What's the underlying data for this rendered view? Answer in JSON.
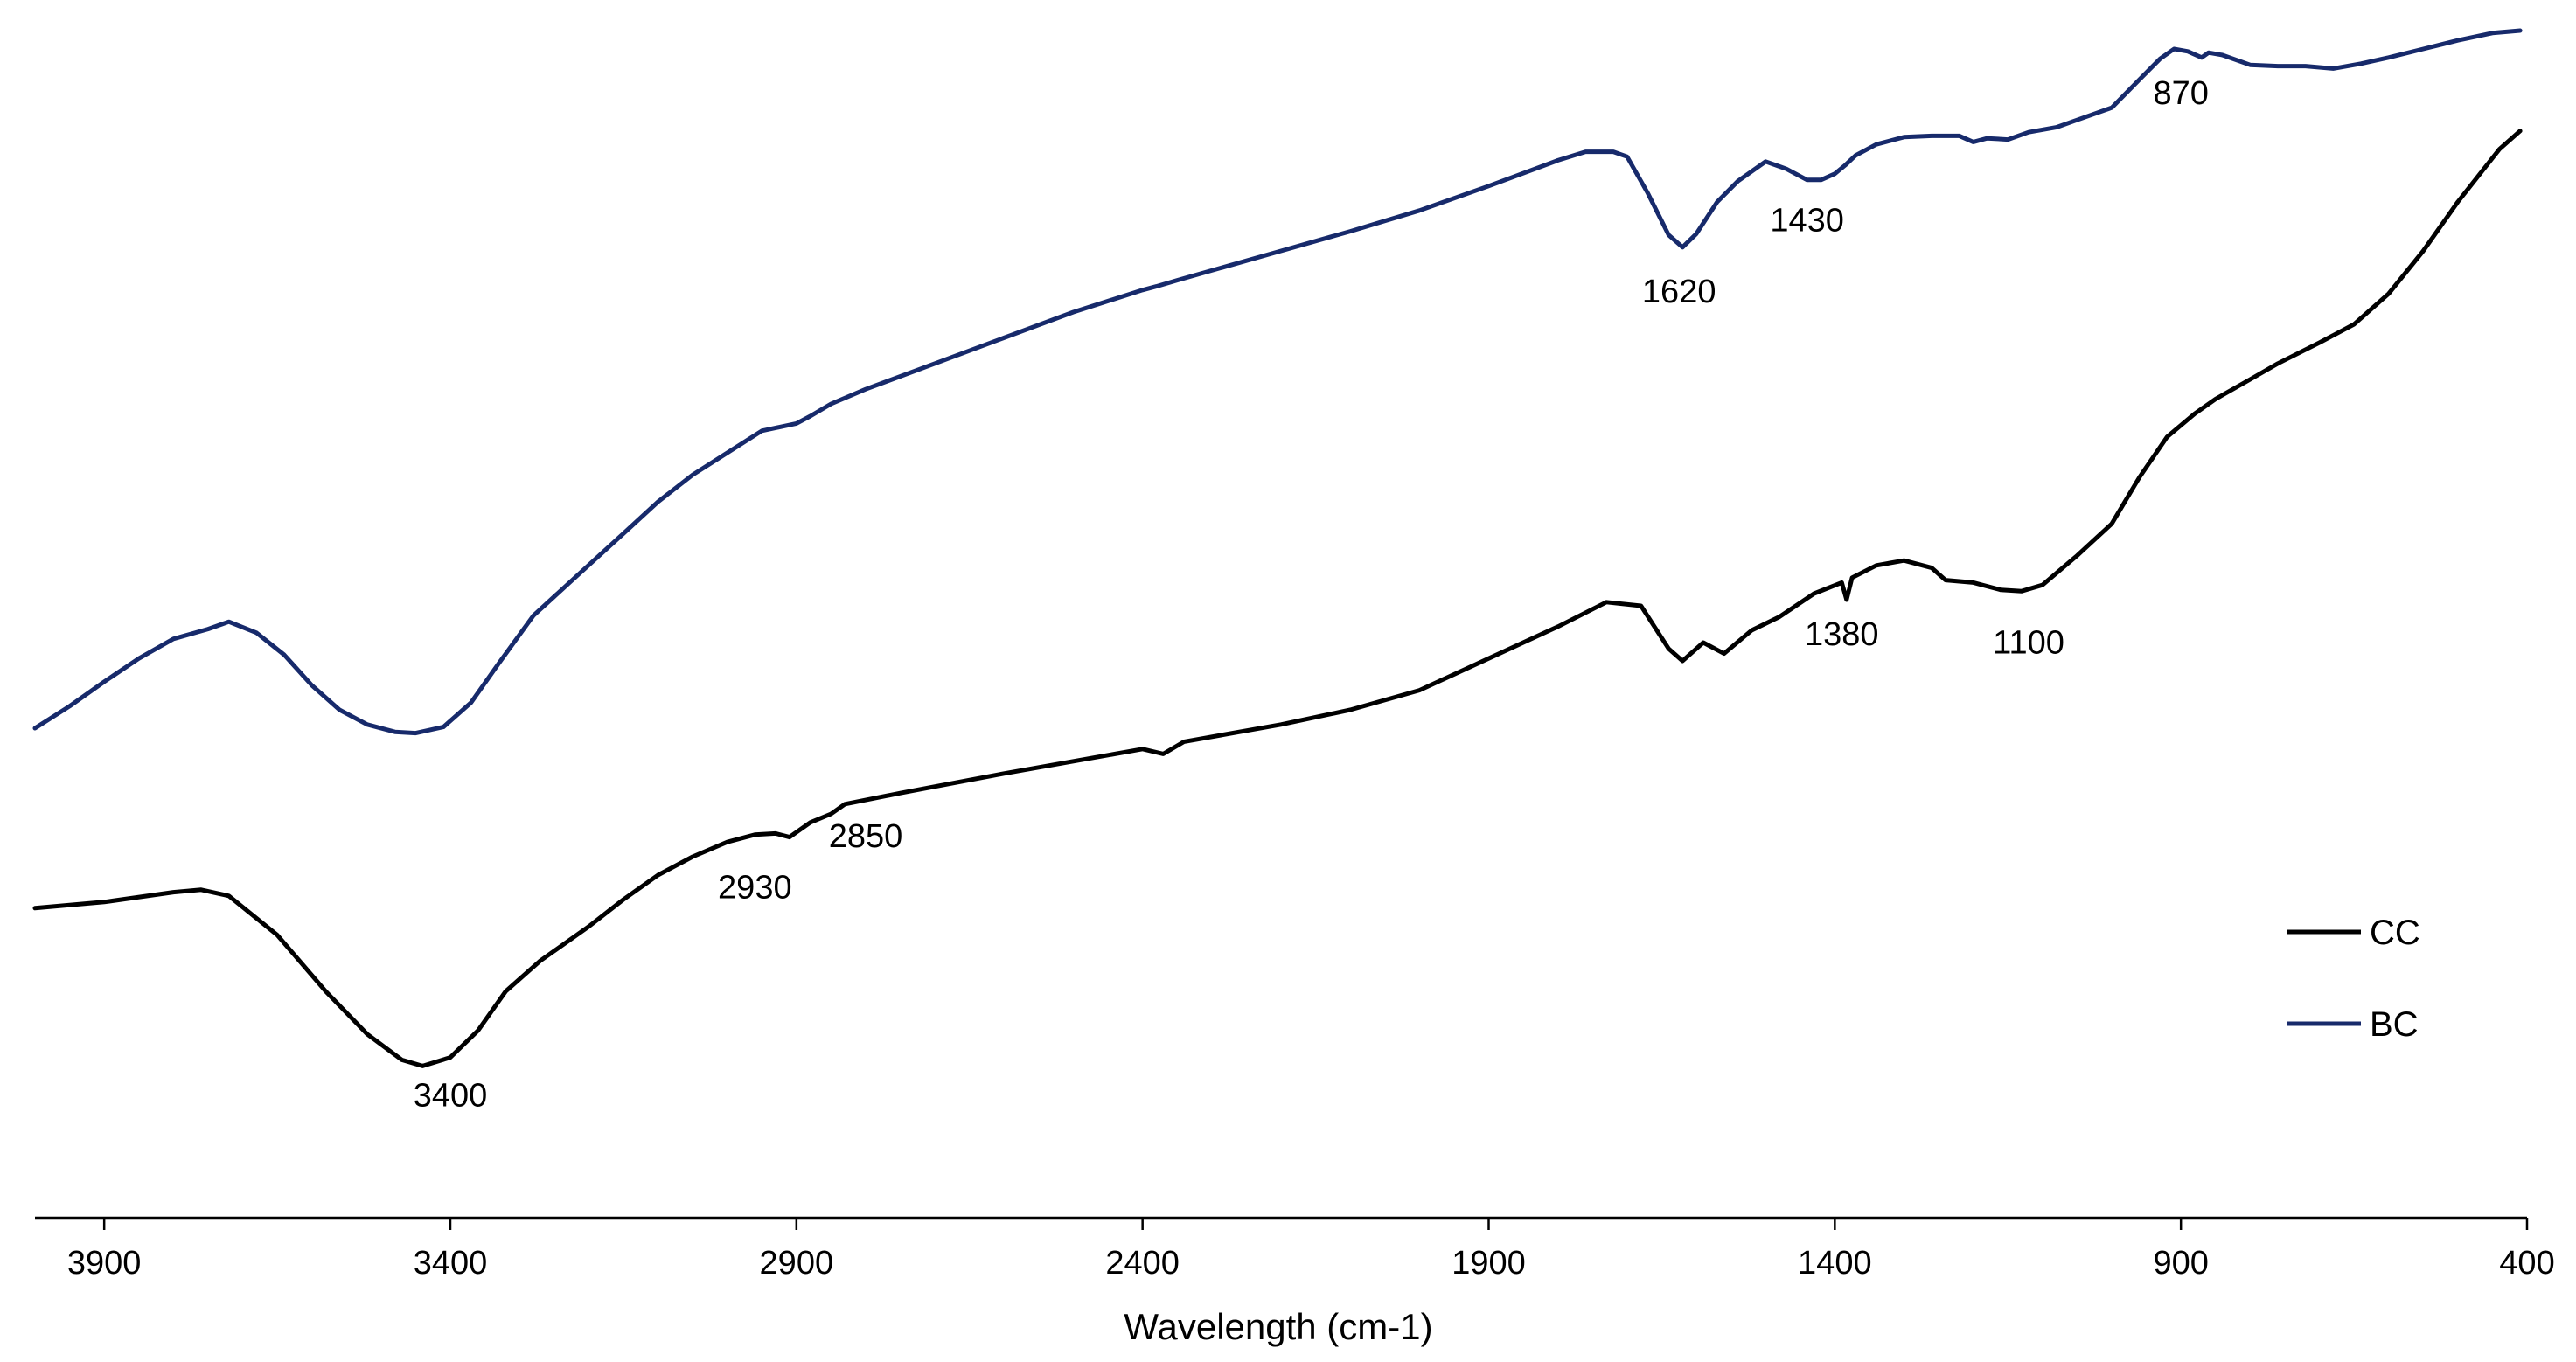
{
  "chart_data": {
    "type": "line",
    "title": "",
    "xlabel": "Wavelength (cm-1)",
    "ylabel": "",
    "xlim": [
      4000,
      400
    ],
    "ylim": [
      0,
      100
    ],
    "x_reversed": true,
    "grid": false,
    "x_ticks": [
      3900,
      3400,
      2900,
      2400,
      1900,
      1400,
      900,
      400
    ],
    "legend_position": "bottom-right",
    "series": [
      {
        "name": "CC",
        "color": "#000000",
        "points": [
          [
            4000,
            25.8
          ],
          [
            3900,
            26.3
          ],
          [
            3800,
            27.1
          ],
          [
            3760,
            27.3
          ],
          [
            3720,
            26.8
          ],
          [
            3650,
            23.6
          ],
          [
            3580,
            19.0
          ],
          [
            3520,
            15.5
          ],
          [
            3470,
            13.4
          ],
          [
            3440,
            12.9
          ],
          [
            3400,
            13.6
          ],
          [
            3360,
            15.8
          ],
          [
            3320,
            19.0
          ],
          [
            3270,
            21.5
          ],
          [
            3200,
            24.3
          ],
          [
            3150,
            26.5
          ],
          [
            3100,
            28.5
          ],
          [
            3050,
            30.0
          ],
          [
            3000,
            31.2
          ],
          [
            2960,
            31.8
          ],
          [
            2930,
            31.9
          ],
          [
            2910,
            31.6
          ],
          [
            2880,
            32.8
          ],
          [
            2850,
            33.5
          ],
          [
            2830,
            34.3
          ],
          [
            2750,
            35.2
          ],
          [
            2600,
            36.8
          ],
          [
            2450,
            38.3
          ],
          [
            2400,
            38.8
          ],
          [
            2370,
            38.4
          ],
          [
            2340,
            39.4
          ],
          [
            2200,
            40.8
          ],
          [
            2100,
            42.0
          ],
          [
            2000,
            43.6
          ],
          [
            1900,
            46.2
          ],
          [
            1800,
            48.8
          ],
          [
            1730,
            50.8
          ],
          [
            1680,
            50.5
          ],
          [
            1640,
            47.0
          ],
          [
            1620,
            46.0
          ],
          [
            1590,
            47.5
          ],
          [
            1560,
            46.6
          ],
          [
            1520,
            48.5
          ],
          [
            1480,
            49.6
          ],
          [
            1430,
            51.5
          ],
          [
            1390,
            52.4
          ],
          [
            1383,
            51.0
          ],
          [
            1375,
            52.8
          ],
          [
            1340,
            53.8
          ],
          [
            1300,
            54.2
          ],
          [
            1260,
            53.6
          ],
          [
            1240,
            52.6
          ],
          [
            1200,
            52.4
          ],
          [
            1160,
            51.8
          ],
          [
            1130,
            51.7
          ],
          [
            1100,
            52.2
          ],
          [
            1050,
            54.6
          ],
          [
            1000,
            57.2
          ],
          [
            960,
            61.0
          ],
          [
            920,
            64.3
          ],
          [
            880,
            66.2
          ],
          [
            850,
            67.4
          ],
          [
            800,
            69.0
          ],
          [
            760,
            70.3
          ],
          [
            700,
            72.0
          ],
          [
            650,
            73.5
          ],
          [
            600,
            76.0
          ],
          [
            550,
            79.5
          ],
          [
            500,
            83.5
          ],
          [
            440,
            87.8
          ],
          [
            410,
            89.3
          ]
        ]
      },
      {
        "name": "BC",
        "color": "#172a6b",
        "points": [
          [
            4000,
            40.5
          ],
          [
            3950,
            42.3
          ],
          [
            3900,
            44.3
          ],
          [
            3850,
            46.2
          ],
          [
            3800,
            47.8
          ],
          [
            3750,
            48.6
          ],
          [
            3720,
            49.2
          ],
          [
            3680,
            48.3
          ],
          [
            3640,
            46.5
          ],
          [
            3600,
            44.0
          ],
          [
            3560,
            42.0
          ],
          [
            3520,
            40.8
          ],
          [
            3480,
            40.2
          ],
          [
            3450,
            40.1
          ],
          [
            3410,
            40.6
          ],
          [
            3370,
            42.6
          ],
          [
            3330,
            45.8
          ],
          [
            3280,
            49.7
          ],
          [
            3220,
            52.8
          ],
          [
            3150,
            56.4
          ],
          [
            3100,
            59.0
          ],
          [
            3050,
            61.2
          ],
          [
            3000,
            63.0
          ],
          [
            2950,
            64.8
          ],
          [
            2900,
            65.4
          ],
          [
            2880,
            66.0
          ],
          [
            2850,
            67.0
          ],
          [
            2800,
            68.2
          ],
          [
            2700,
            70.3
          ],
          [
            2600,
            72.4
          ],
          [
            2500,
            74.5
          ],
          [
            2400,
            76.3
          ],
          [
            2380,
            76.6
          ],
          [
            2350,
            77.1
          ],
          [
            2300,
            77.9
          ],
          [
            2200,
            79.5
          ],
          [
            2100,
            81.1
          ],
          [
            2000,
            82.8
          ],
          [
            1900,
            84.8
          ],
          [
            1800,
            86.9
          ],
          [
            1760,
            87.6
          ],
          [
            1720,
            87.6
          ],
          [
            1700,
            87.2
          ],
          [
            1670,
            84.2
          ],
          [
            1640,
            80.8
          ],
          [
            1620,
            79.8
          ],
          [
            1600,
            80.9
          ],
          [
            1570,
            83.5
          ],
          [
            1540,
            85.2
          ],
          [
            1500,
            86.8
          ],
          [
            1470,
            86.2
          ],
          [
            1440,
            85.3
          ],
          [
            1420,
            85.3
          ],
          [
            1400,
            85.8
          ],
          [
            1385,
            86.5
          ],
          [
            1370,
            87.3
          ],
          [
            1340,
            88.2
          ],
          [
            1300,
            88.8
          ],
          [
            1260,
            88.9
          ],
          [
            1220,
            88.9
          ],
          [
            1200,
            88.4
          ],
          [
            1180,
            88.7
          ],
          [
            1150,
            88.6
          ],
          [
            1120,
            89.2
          ],
          [
            1080,
            89.6
          ],
          [
            1050,
            90.2
          ],
          [
            1000,
            91.2
          ],
          [
            960,
            93.5
          ],
          [
            930,
            95.2
          ],
          [
            910,
            96.0
          ],
          [
            890,
            95.8
          ],
          [
            870,
            95.3
          ],
          [
            860,
            95.7
          ],
          [
            840,
            95.5
          ],
          [
            800,
            94.7
          ],
          [
            760,
            94.6
          ],
          [
            720,
            94.6
          ],
          [
            680,
            94.4
          ],
          [
            640,
            94.8
          ],
          [
            600,
            95.3
          ],
          [
            550,
            96.0
          ],
          [
            500,
            96.7
          ],
          [
            450,
            97.3
          ],
          [
            410,
            97.5
          ]
        ]
      }
    ],
    "annotations": [
      {
        "text": "3400",
        "x": 3400,
        "y": 9.6
      },
      {
        "text": "2930",
        "x": 2960,
        "y": 26.6
      },
      {
        "text": "2850",
        "x": 2800,
        "y": 30.8
      },
      {
        "text": "1380",
        "x": 1390,
        "y": 47.3
      },
      {
        "text": "1100",
        "x": 1120,
        "y": 46.6
      },
      {
        "text": "1620",
        "x": 1625,
        "y": 75.3
      },
      {
        "text": "1430",
        "x": 1440,
        "y": 81.1
      },
      {
        "text": "870",
        "x": 900,
        "y": 91.5
      }
    ]
  }
}
